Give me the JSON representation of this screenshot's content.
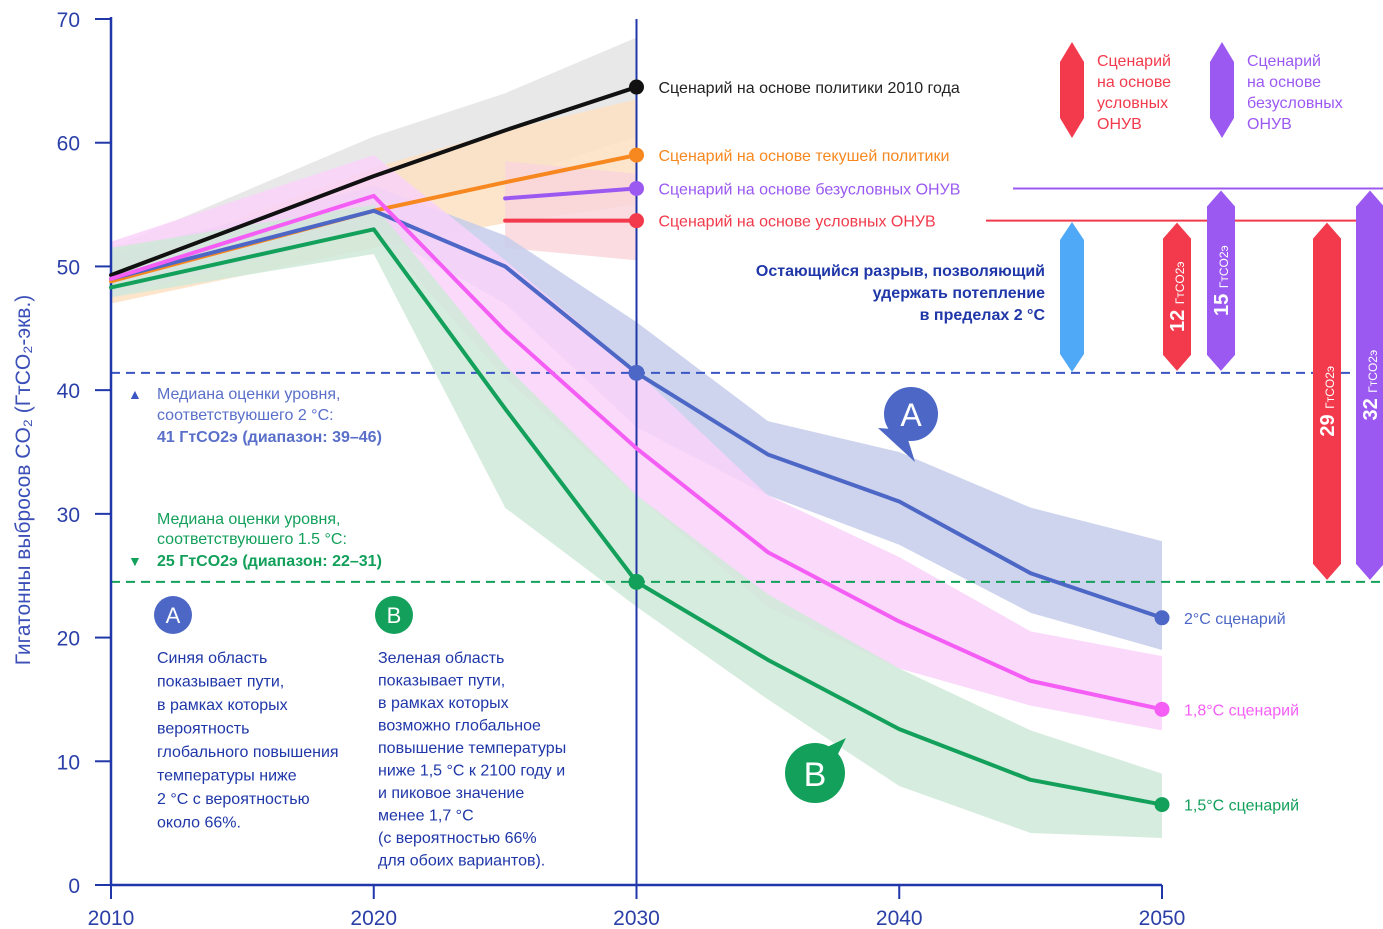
{
  "chart_data": {
    "type": "line",
    "ylabel": "Гигатонны выбросов CO₂ (ГтCO₂-экв.)",
    "ylim": [
      0,
      70
    ],
    "xlim": [
      2010,
      2050
    ],
    "xticks": [
      "2010",
      "2020",
      "2030",
      "2040",
      "2050"
    ],
    "yticks": [
      "0",
      "10",
      "20",
      "30",
      "40",
      "50",
      "60",
      "70"
    ],
    "series": [
      {
        "name": "Сценарий на основе политики 2010 года",
        "color": "#111111",
        "x": [
          2010,
          2020,
          2025,
          2030
        ],
        "y": [
          49.3,
          57.3,
          61.0,
          64.5
        ],
        "band_upper": [
          51.5,
          60.5,
          64.0,
          68.5
        ],
        "band_lower": [
          48.0,
          54.0,
          57.0,
          60.5
        ],
        "band_color": "#e4e4e4"
      },
      {
        "name": "Сценарий на основе текушей политики",
        "color": "#f7871f",
        "x": [
          2010,
          2020,
          2025,
          2030
        ],
        "y": [
          48.8,
          54.5,
          56.8,
          59.0
        ],
        "band_upper": [
          50.0,
          58.0,
          61.0,
          63.5
        ],
        "band_lower": [
          47.0,
          51.5,
          53.5,
          55.0
        ],
        "band_color": "#fde0c3"
      },
      {
        "name": "Сценарий на основе безусловных ОНУВ",
        "color": "#9b59f2",
        "x": [
          2025,
          2030
        ],
        "y": [
          55.5,
          56.3
        ]
      },
      {
        "name": "Сценарий на основе условных ОНУВ",
        "color": "#f23a4c",
        "x": [
          2025,
          2030
        ],
        "y": [
          53.7,
          53.7
        ],
        "band_upper": [
          58.5,
          57.5
        ],
        "band_lower": [
          51.5,
          50.5
        ],
        "band_color": "#f9d6dc"
      },
      {
        "name": "2°C сценарий",
        "color": "#4d67c6",
        "x": [
          2010,
          2020,
          2025,
          2030,
          2035,
          2040,
          2045,
          2050
        ],
        "y": [
          49.0,
          54.5,
          50.0,
          41.4,
          34.8,
          31.0,
          25.2,
          21.6
        ],
        "band_upper": [
          51.0,
          56.5,
          52.5,
          45.5,
          37.5,
          35.0,
          30.5,
          27.8
        ],
        "band_lower": [
          48.0,
          53.0,
          47.0,
          37.0,
          31.5,
          27.5,
          22.0,
          19.0
        ],
        "band_color": "#c6cdea"
      },
      {
        "name": "1,8°C сценарий",
        "color": "#f45ef5",
        "x": [
          2010,
          2020,
          2025,
          2030,
          2035,
          2040,
          2045,
          2050
        ],
        "y": [
          49.0,
          55.7,
          44.8,
          35.3,
          26.9,
          21.3,
          16.5,
          14.2
        ],
        "band_upper": [
          52.0,
          59.0,
          50.5,
          41.5,
          31.5,
          26.5,
          20.5,
          18.5
        ],
        "band_lower": [
          47.5,
          53.0,
          41.0,
          31.5,
          22.5,
          17.5,
          14.5,
          12.5
        ],
        "band_color": "#f9d2f9"
      },
      {
        "name": "1,5°C сценарий",
        "color": "#13a05b",
        "x": [
          2010,
          2020,
          2025,
          2030,
          2035,
          2040,
          2045,
          2050
        ],
        "y": [
          48.3,
          53.0,
          38.5,
          24.5,
          18.2,
          12.6,
          8.5,
          6.5
        ],
        "band_upper": [
          51.5,
          55.0,
          42.0,
          31.5,
          23.5,
          17.5,
          12.5,
          9.0
        ],
        "band_lower": [
          47.5,
          51.0,
          30.5,
          22.5,
          15.0,
          8.0,
          4.2,
          3.8
        ],
        "band_color": "#cfe9d8"
      }
    ],
    "thresholds": [
      {
        "value": 41.4,
        "color": "#3b56c4"
      },
      {
        "value": 24.5,
        "color": "#13a05b"
      }
    ],
    "gap_arrows": [
      {
        "label": "12",
        "unit": "ГтCO2э",
        "from": 53.7,
        "to": 41.4,
        "color": "#f23a4c"
      },
      {
        "label": "15",
        "unit": "ГтCO2э",
        "from": 56.3,
        "to": 41.4,
        "color": "#9b59f2"
      },
      {
        "label": "29",
        "unit": "ГтCO2э",
        "from": 53.7,
        "to": 24.5,
        "color": "#f23a4c"
      },
      {
        "label": "32",
        "unit": "ГтCO2э",
        "from": 56.3,
        "to": 24.5,
        "color": "#9b59f2"
      }
    ]
  },
  "annotations": {
    "remaining_gap": [
      "Остающийся разрыв, позволяющий",
      "удержать потепление",
      "в пределах 2 °C"
    ],
    "legend_conditional": [
      "Сценарий",
      "на основе",
      "условных",
      "ОНУВ"
    ],
    "legend_unconditional": [
      "Сценарий",
      "на основе",
      "безусловных",
      "ОНУВ"
    ],
    "median_2c": {
      "lines": [
        "Медиана оценки уровня,",
        "соответствуюшего 2 °C:"
      ],
      "bold": "41 ГтCO2э (диапазон: 39–46)",
      "marker": "▲"
    },
    "median_15c": {
      "lines": [
        "Медиана оценки уровня,",
        "соответствуюшего 1.5 °C:"
      ],
      "bold": "25 ГтCO2э (диапазон: 22–31)",
      "marker": "▼"
    },
    "callout_a": {
      "badge": "A",
      "lines": [
        "Синяя область",
        "показывает пути,",
        "в рамках которых",
        "вероятность",
        "глобального повышения",
        "температуры ниже",
        "2 °C с вероятностью",
        "около 66%."
      ]
    },
    "callout_b": {
      "badge": "B",
      "lines": [
        "Зеленая область",
        "показывает пути,",
        "в рамках которых",
        "возможно глобальное",
        "повышение температуры",
        "ниже 1,5 °C к 2100 году и",
        "и пиковое значение",
        "менее 1,7 °C",
        "(с вероятностью 66%",
        "для обоих вариантов)."
      ]
    },
    "bubble_a": "A",
    "bubble_b": "B"
  },
  "colors": {
    "axis": "#1f37a8",
    "remaining_gap_arrow": "#4fa9f7",
    "blue_text": "#1f37a8",
    "green_text": "#13a05b",
    "median_2c_text": "#5a6fc9"
  }
}
